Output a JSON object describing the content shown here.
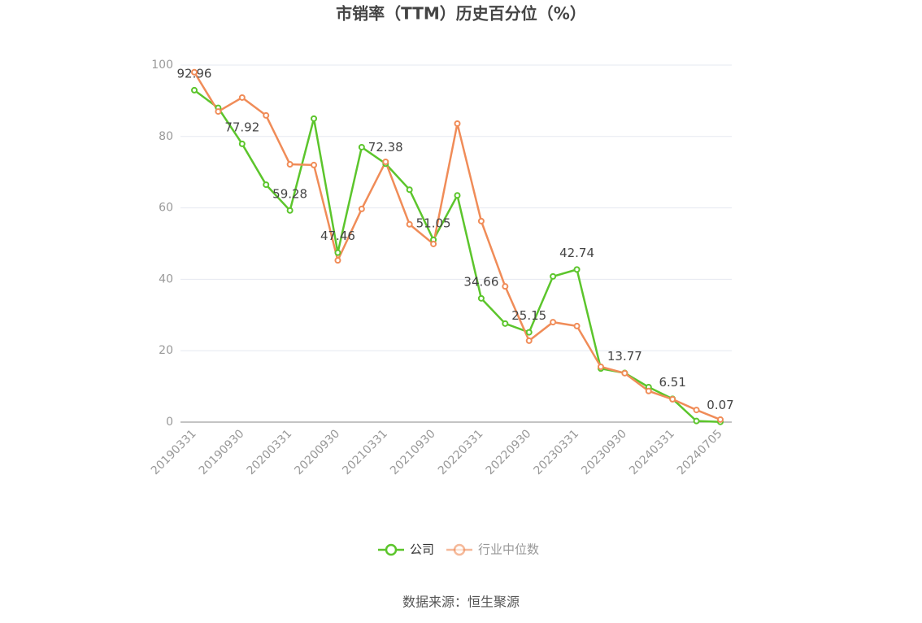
{
  "chart_data": {
    "type": "line",
    "title": "市销率（TTM）历史百分位（%）",
    "source": "数据来源：恒生聚源",
    "categories": [
      "20190331",
      null,
      "20190930",
      null,
      "20200331",
      null,
      "20200930",
      null,
      "20210331",
      null,
      "20210930",
      null,
      "20220331",
      null,
      "20220930",
      null,
      "20230331",
      null,
      "20230930",
      null,
      "20240331",
      null,
      "20240705"
    ],
    "series": [
      {
        "name": "公司",
        "color": "#5cc52c",
        "values": [
          92.96,
          88,
          77.92,
          66.5,
          59.28,
          85,
          47.46,
          77,
          72.38,
          65.1,
          51.05,
          63.5,
          34.66,
          27.6,
          25.15,
          40.8,
          42.74,
          15,
          13.77,
          9.8,
          6.51,
          0.3,
          0.07
        ]
      },
      {
        "name": "行业中位数",
        "color": "#f08c58",
        "values": [
          98,
          87,
          90.9,
          85.9,
          72.2,
          72,
          45.3,
          59.7,
          72.9,
          55.4,
          49.9,
          83.6,
          56.3,
          38,
          22.8,
          28,
          26.9,
          15.5,
          13.7,
          8.7,
          6.4,
          3.4,
          0.7
        ]
      }
    ],
    "ylim": [
      0,
      100
    ],
    "yticks": [
      0,
      20,
      40,
      60,
      80,
      100
    ],
    "grid": true
  }
}
